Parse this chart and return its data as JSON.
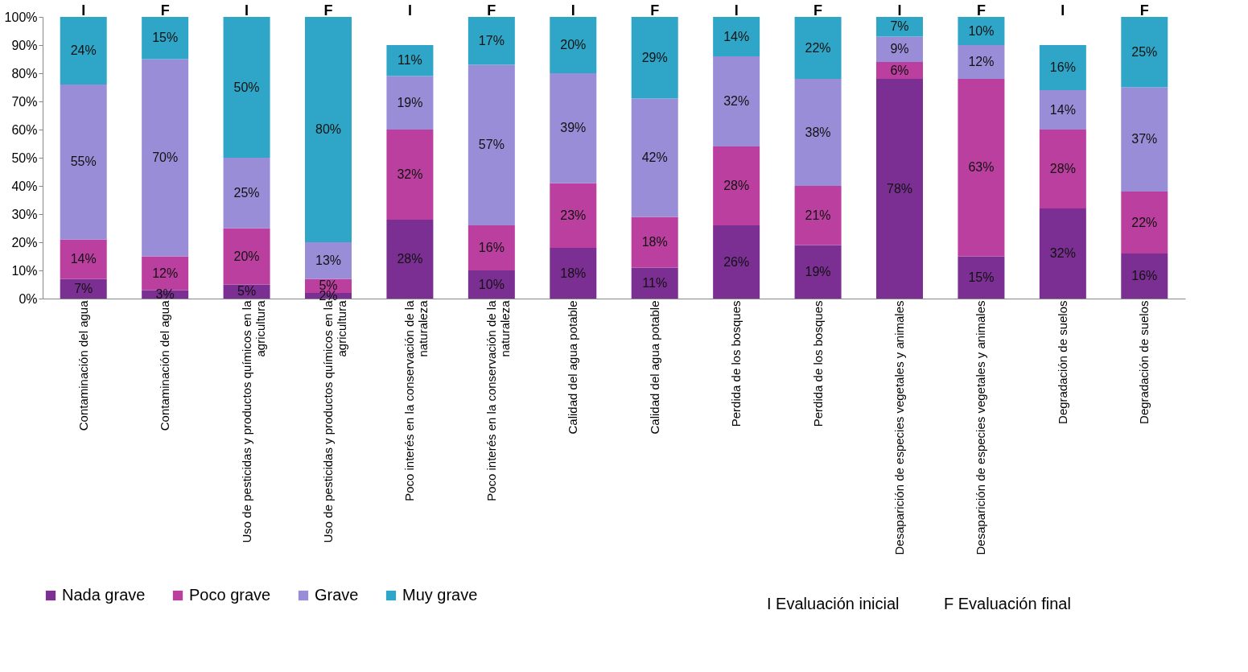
{
  "chart_data": {
    "type": "bar",
    "stacked": true,
    "categories": [
      "Contaminación del agua",
      "Contaminación del agua",
      "Uso de pesticidas y productos químicos en la agricultura",
      "Uso de pesticidas y productos químicos en la agricultura",
      "Poco interés  en la conservación de la naturaleza",
      "Poco interés  en la conservación de la naturaleza",
      "Calidad del agua potable",
      "Calidad del agua potable",
      "Perdida de los bosques",
      "Perdida de los bosques",
      "Desaparición de especies vegetales y animales",
      "Desaparición de especies vegetales y animales",
      "Degradación de suelos",
      "Degradación de suelos"
    ],
    "series": [
      {
        "name": "Nada grave",
        "color": "#7b2f92",
        "values": [
          7,
          3,
          5,
          2,
          28,
          10,
          18,
          11,
          26,
          19,
          78,
          15,
          32,
          16
        ],
        "value_labels": [
          "7%",
          "3%",
          "5%",
          "2%",
          "28%",
          "10%",
          "18%",
          "11%",
          "26%",
          "19%",
          "78%",
          "15%",
          "32%",
          "16%"
        ]
      },
      {
        "name": "Poco grave",
        "color": "#bb3f9e",
        "values": [
          14,
          12,
          20,
          5,
          32,
          16,
          23,
          18,
          28,
          21,
          6,
          63,
          28,
          22
        ],
        "value_labels": [
          "14%",
          "12%",
          "20%",
          "5%",
          "32%",
          "16%",
          "23%",
          "18%",
          "28%",
          "21%",
          "6%",
          "63%",
          "28%",
          "22%"
        ]
      },
      {
        "name": "Grave",
        "color": "#9a8dd8",
        "values": [
          55,
          70,
          25,
          13,
          19,
          57,
          39,
          42,
          32,
          38,
          9,
          12,
          14,
          37
        ],
        "value_labels": [
          "55%",
          "70%",
          "25%",
          "13%",
          "19%",
          "57%",
          "39%",
          "42%",
          "32%",
          "38%",
          "9%",
          "12%",
          "14%",
          "37%"
        ]
      },
      {
        "name": "Muy grave",
        "color": "#2fa6c7",
        "values": [
          24,
          15,
          50,
          80,
          11,
          17,
          20,
          29,
          14,
          22,
          7,
          10,
          16,
          25
        ],
        "value_labels": [
          "24%",
          "15%",
          "50%",
          "80%",
          "11%",
          "17%",
          "20%",
          "29%",
          "14%",
          "22%",
          "7%",
          "10%",
          "16%",
          "25%"
        ]
      }
    ],
    "ylim": [
      0,
      100
    ],
    "yticks": [
      {
        "value": 0,
        "label": "0%"
      },
      {
        "value": 10,
        "label": "10%"
      },
      {
        "value": 20,
        "label": "20%"
      },
      {
        "value": 30,
        "label": "30%"
      },
      {
        "value": 40,
        "label": "40%"
      },
      {
        "value": 50,
        "label": "50%"
      },
      {
        "value": 60,
        "label": "60%"
      },
      {
        "value": 70,
        "label": "70%"
      },
      {
        "value": 80,
        "label": "80%"
      },
      {
        "value": 90,
        "label": "90%"
      },
      {
        "value": 100,
        "label": "100%"
      }
    ],
    "grid": false,
    "legend": "bottom left",
    "annotations": [
      "I",
      "F",
      "I",
      "F",
      "I",
      "F",
      "I",
      "F",
      "I",
      "F",
      "I",
      "F",
      "I",
      "F",
      "I  Evaluación inicial",
      "F  Evaluación final"
    ]
  }
}
